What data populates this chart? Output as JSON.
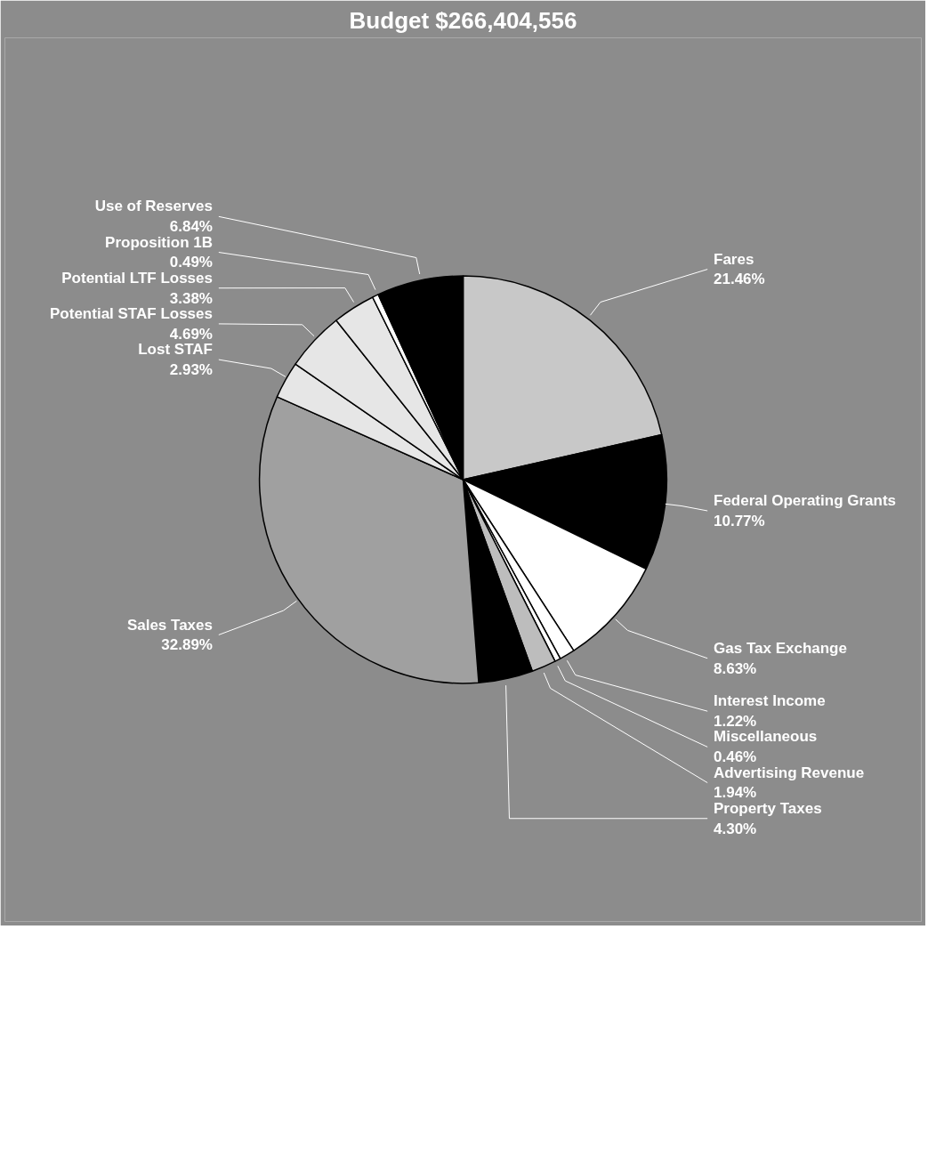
{
  "chart_data": {
    "type": "pie",
    "title": "Budget $266,404,556",
    "categories": [
      "Fares",
      "Federal Operating Grants",
      "Gas Tax Exchange",
      "Interest Income",
      "Miscellaneous",
      "Advertising Revenue",
      "Property Taxes",
      "Sales Taxes",
      "Lost STAF",
      "Potential STAF Losses",
      "Potential LTF Losses",
      "Proposition 1B",
      "Use of Reserves"
    ],
    "values": [
      21.46,
      10.77,
      8.63,
      1.22,
      0.46,
      1.94,
      4.3,
      32.89,
      2.93,
      4.69,
      3.38,
      0.49,
      6.84
    ],
    "value_labels": [
      "21.46%",
      "10.77%",
      "8.63%",
      "1.22%",
      "0.46%",
      "1.94%",
      "4.30%",
      "32.89%",
      "2.93%",
      "4.69%",
      "3.38%",
      "0.49%",
      "6.84%"
    ],
    "colors": [
      "#c8c8c8",
      "#000000",
      "#ffffff",
      "#ffffff",
      "#ffffff",
      "#bdbdbd",
      "#000000",
      "#a0a0a0",
      "#e6e6e6",
      "#e6e6e6",
      "#e6e6e6",
      "#ffffff",
      "#000000"
    ]
  }
}
